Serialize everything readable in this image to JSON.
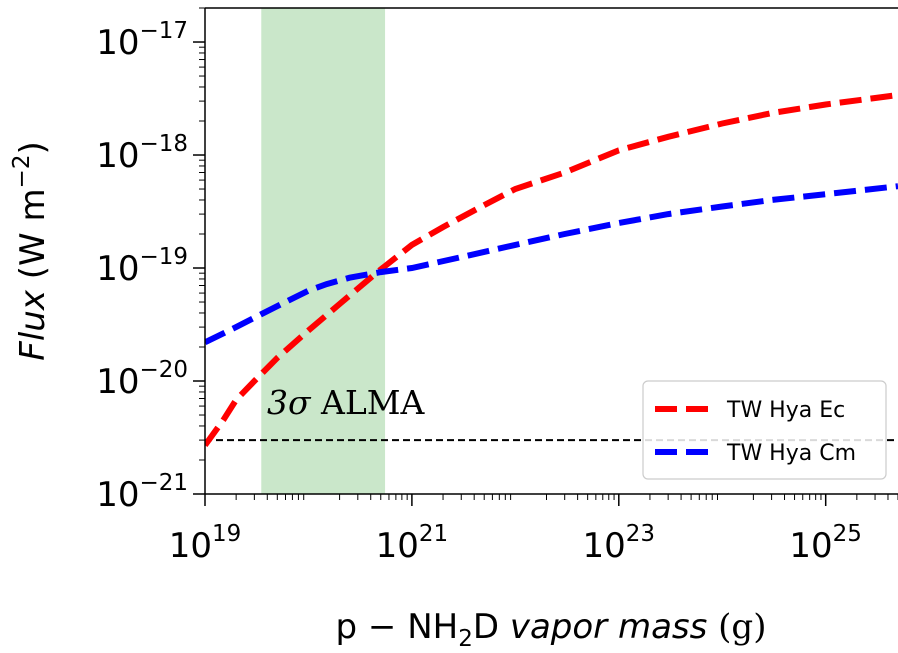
{
  "chart_data": {
    "type": "line",
    "x_scale": "log",
    "y_scale": "log",
    "xlim": [
      1e+19,
      5e+25
    ],
    "ylim": [
      1e-21,
      2e-17
    ],
    "grid": false,
    "xlabel": {
      "prefix": "p − NH",
      "subscript": "2",
      "mid": "D ",
      "italic": "vapor mass",
      "suffix": " (g)"
    },
    "ylabel": {
      "italic": "Flux",
      "suffix": " (W m",
      "superscript": "−2",
      "close": ")"
    },
    "x_ticks": [
      {
        "value": 1e+19,
        "base": "10",
        "exp": "19"
      },
      {
        "value": 1e+21,
        "base": "10",
        "exp": "21"
      },
      {
        "value": 1e+23,
        "base": "10",
        "exp": "23"
      },
      {
        "value": 1e+25,
        "base": "10",
        "exp": "25"
      }
    ],
    "y_ticks": [
      {
        "value": 1e-21,
        "base": "10",
        "exp": "−21"
      },
      {
        "value": 1e-20,
        "base": "10",
        "exp": "−20"
      },
      {
        "value": 1e-19,
        "base": "10",
        "exp": "−19"
      },
      {
        "value": 1e-18,
        "base": "10",
        "exp": "−18"
      },
      {
        "value": 1e-17,
        "base": "10",
        "exp": "−17"
      }
    ],
    "shaded_band": {
      "x_range": [
        3.5e+19,
        5.5e+20
      ],
      "color": "#2ca02c",
      "opacity": 0.25
    },
    "threshold_line": {
      "y": 3e-21,
      "label_italic": "3σ",
      "label_rest": " ALMA",
      "color": "#000000"
    },
    "series": [
      {
        "name": "TW Hya Ec",
        "color": "#ff0000",
        "x": [
          1e+19,
          1.5e+19,
          2e+19,
          3e+19,
          5e+19,
          1e+20,
          2e+20,
          4.5e+20,
          1e+21,
          2e+21,
          5e+21,
          1e+22,
          3e+22,
          1e+23,
          3e+23,
          1e+24,
          3e+24,
          1e+25,
          5e+25
        ],
        "y": [
          2.7e-21,
          4.5e-21,
          6.8e-21,
          1e-20,
          1.6e-20,
          2.8e-20,
          4.8e-20,
          9e-20,
          1.6e-19,
          2.3e-19,
          3.6e-19,
          5e-19,
          7e-19,
          1.1e-18,
          1.45e-18,
          1.9e-18,
          2.35e-18,
          2.8e-18,
          3.4e-18
        ]
      },
      {
        "name": "TW Hya Cm",
        "color": "#0000ff",
        "x": [
          1e+19,
          2e+19,
          3.5e+19,
          6e+19,
          1e+20,
          1.5e+20,
          2.5e+20,
          5e+20,
          1e+21,
          3e+21,
          1e+22,
          3e+22,
          1e+23,
          3e+23,
          1e+24,
          3e+24,
          1e+25,
          5e+25
        ],
        "y": [
          2.2e-20,
          3e-20,
          3.9e-20,
          5e-20,
          6.3e-20,
          7.2e-20,
          8.2e-20,
          9.2e-20,
          1e-19,
          1.25e-19,
          1.6e-19,
          2e-19,
          2.5e-19,
          3e-19,
          3.5e-19,
          4e-19,
          4.5e-19,
          5.3e-19
        ]
      }
    ],
    "legend": {
      "placement": "lower-right"
    }
  }
}
